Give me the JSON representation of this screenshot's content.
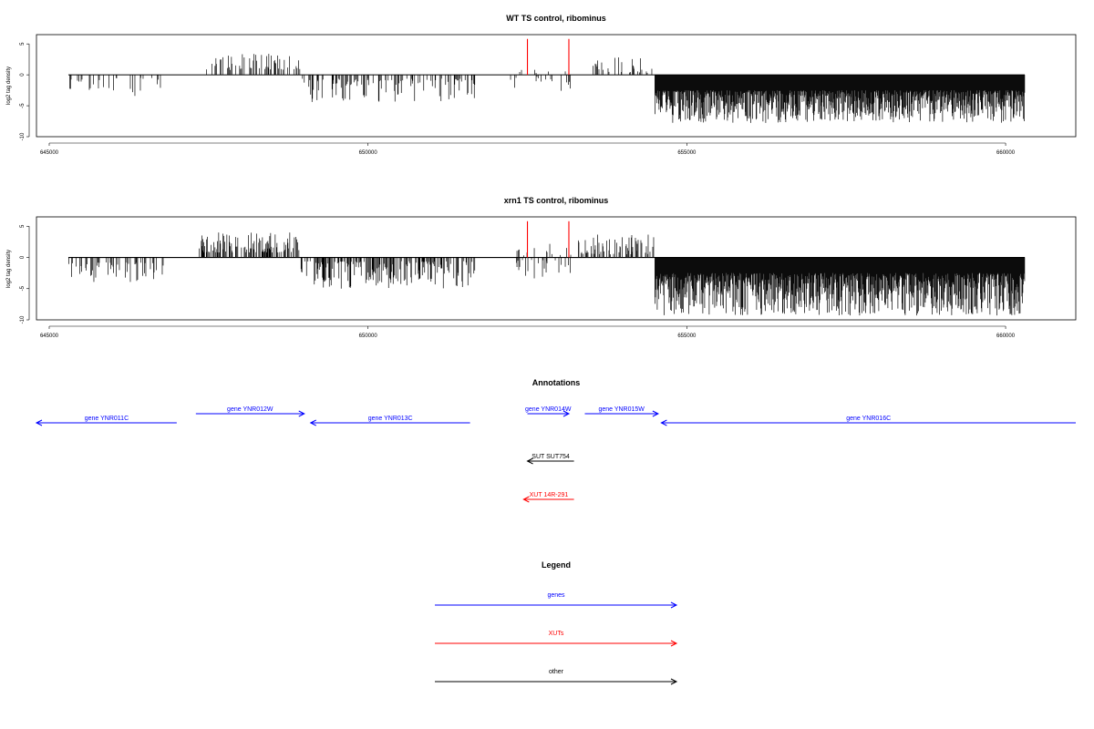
{
  "colors": {
    "genes": "#0000ff",
    "xuts": "#ff0000",
    "other": "#000000",
    "marker": "#ff0000"
  },
  "chart_data": [
    {
      "type": "bar",
      "title": "WT TS control, ribominus",
      "ylabel": "log2 tag density",
      "xlim": [
        644800,
        661100
      ],
      "ylim": [
        -10,
        6.5
      ],
      "xticks": [
        645000,
        650000,
        655000,
        660000
      ],
      "xtick_labels": [
        "645000",
        "650000",
        "655000",
        "660000"
      ],
      "yticks": [
        -10,
        -5,
        0,
        5
      ],
      "ytick_labels": [
        "-10",
        "-5",
        "0",
        "5"
      ],
      "baseline": {
        "x": [
          645300,
          660300
        ],
        "y": 0
      },
      "markers": [
        {
          "x": 652500,
          "y": 5.8,
          "color": "red"
        },
        {
          "x": 653150,
          "y": 5.8,
          "color": "red"
        }
      ],
      "density_regions": [
        {
          "x": [
            645300,
            646850
          ],
          "dir": "neg",
          "min": 0.5,
          "max": 3.5,
          "density": 0.06,
          "seed": 11
        },
        {
          "x": [
            647450,
            648950
          ],
          "dir": "pos",
          "min": 0.8,
          "max": 3.4,
          "density": 0.12,
          "seed": 12
        },
        {
          "x": [
            648950,
            651700
          ],
          "dir": "neg",
          "min": 0.6,
          "max": 4.5,
          "density": 0.12,
          "seed": 13
        },
        {
          "x": [
            652200,
            653200
          ],
          "dir": "neg",
          "min": 0.3,
          "max": 2.6,
          "density": 0.05,
          "seed": 14
        },
        {
          "x": [
            652300,
            653200
          ],
          "dir": "pos",
          "min": 0.3,
          "max": 1.6,
          "density": 0.03,
          "seed": 15
        },
        {
          "x": [
            653500,
            654500
          ],
          "dir": "pos",
          "min": 0.3,
          "max": 3.0,
          "density": 0.09,
          "seed": 16
        },
        {
          "x": [
            654500,
            660300
          ],
          "dir": "neg",
          "min": 2.5,
          "max": 7.8,
          "density": 0.5,
          "seed": 17
        }
      ]
    },
    {
      "type": "bar",
      "title": "xrn1 TS control, ribominus",
      "ylabel": "log2 tag density",
      "xlim": [
        644800,
        661100
      ],
      "ylim": [
        -10,
        6.5
      ],
      "xticks": [
        645000,
        650000,
        655000,
        660000
      ],
      "xtick_labels": [
        "645000",
        "650000",
        "655000",
        "660000"
      ],
      "yticks": [
        -10,
        -5,
        0,
        5
      ],
      "ytick_labels": [
        "-10",
        "-5",
        "0",
        "5"
      ],
      "baseline": {
        "x": [
          645300,
          660300
        ],
        "y": 0
      },
      "markers": [
        {
          "x": 652500,
          "y": 5.8,
          "color": "red"
        },
        {
          "x": 653150,
          "y": 5.8,
          "color": "red"
        }
      ],
      "density_regions": [
        {
          "x": [
            645300,
            646850
          ],
          "dir": "neg",
          "min": 0.8,
          "max": 4.2,
          "density": 0.12,
          "seed": 21
        },
        {
          "x": [
            645500,
            645550
          ],
          "dir": "pos",
          "min": 1.4,
          "max": 1.6,
          "density": 0.02,
          "seed": 22
        },
        {
          "x": [
            647350,
            648950
          ],
          "dir": "pos",
          "min": 0.8,
          "max": 4.0,
          "density": 0.22,
          "seed": 23
        },
        {
          "x": [
            648950,
            651700
          ],
          "dir": "neg",
          "min": 0.6,
          "max": 5.0,
          "density": 0.2,
          "seed": 24
        },
        {
          "x": [
            652300,
            653200
          ],
          "dir": "neg",
          "min": 0.4,
          "max": 3.4,
          "density": 0.09,
          "seed": 25
        },
        {
          "x": [
            652300,
            653200
          ],
          "dir": "pos",
          "min": 0.3,
          "max": 2.3,
          "density": 0.06,
          "seed": 26
        },
        {
          "x": [
            653300,
            654500
          ],
          "dir": "pos",
          "min": 0.5,
          "max": 4.2,
          "density": 0.18,
          "seed": 27
        },
        {
          "x": [
            654500,
            660300
          ],
          "dir": "neg",
          "min": 2.5,
          "max": 9.3,
          "density": 0.7,
          "seed": 28
        }
      ]
    }
  ],
  "annotations": {
    "title": "Annotations",
    "xlim": [
      644800,
      661100
    ],
    "features": [
      {
        "label": "gene YNR011C",
        "start": 644800,
        "end": 647000,
        "strand": "-",
        "category": "genes",
        "row": 0
      },
      {
        "label": "gene YNR012W",
        "start": 647300,
        "end": 649000,
        "strand": "+",
        "category": "genes",
        "row": 1
      },
      {
        "label": "gene YNR013C",
        "start": 649100,
        "end": 651600,
        "strand": "-",
        "category": "genes",
        "row": 0
      },
      {
        "label": "gene YNR014W",
        "start": 652500,
        "end": 653150,
        "strand": "+",
        "category": "genes",
        "row": 1
      },
      {
        "label": "gene YNR015W",
        "start": 653400,
        "end": 654550,
        "strand": "+",
        "category": "genes",
        "row": 1
      },
      {
        "label": "gene YNR016C",
        "start": 654600,
        "end": 661100,
        "strand": "-",
        "category": "genes",
        "row": 0
      },
      {
        "label": "SUT SUT754",
        "start": 652500,
        "end": 653230,
        "strand": "-",
        "category": "other",
        "row": 2
      },
      {
        "label": "XUT 14R-291",
        "start": 652440,
        "end": 653230,
        "strand": "-",
        "category": "xuts",
        "row": 3
      }
    ]
  },
  "legend": {
    "title": "Legend",
    "items": [
      {
        "label": "genes",
        "category": "genes"
      },
      {
        "label": "XUTs",
        "category": "xuts"
      },
      {
        "label": "other",
        "category": "other"
      }
    ]
  }
}
